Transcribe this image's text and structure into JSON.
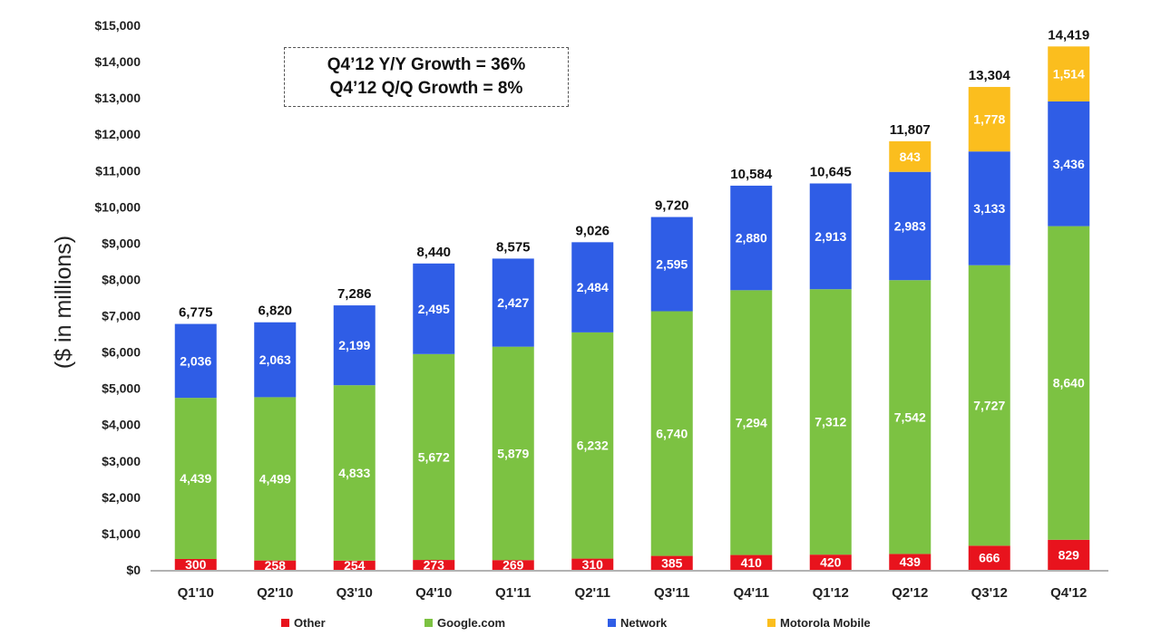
{
  "colors": {
    "Other": "#e8131d",
    "Google.com": "#7cc242",
    "Network": "#2f5de6",
    "Motorola Mobile": "#fbbe1e"
  },
  "growth_box": {
    "line1": "Q4’12 Y/Y Growth = 36%",
    "line2": "Q4’12 Q/Q Growth = 8%"
  },
  "chart_data": {
    "type": "bar",
    "stacked": true,
    "title": "",
    "xlabel": "",
    "ylabel": "($ in  millions)",
    "ylim": [
      0,
      15000
    ],
    "ytick_values": [
      0,
      1000,
      2000,
      3000,
      4000,
      5000,
      6000,
      7000,
      8000,
      9000,
      10000,
      11000,
      12000,
      13000,
      14000,
      15000
    ],
    "ytick_labels": [
      "$0",
      "$1,000",
      "$2,000",
      "$3,000",
      "$4,000",
      "$5,000",
      "$6,000",
      "$7,000",
      "$8,000",
      "$9,000",
      "$10,000",
      "$11,000",
      "$12,000",
      "$13,000",
      "$14,000",
      "$15,000"
    ],
    "categories": [
      "Q1'10",
      "Q2'10",
      "Q3'10",
      "Q4'10",
      "Q1'11",
      "Q2'11",
      "Q3'11",
      "Q4'11",
      "Q1'12",
      "Q2'12",
      "Q3'12",
      "Q4'12"
    ],
    "series": [
      {
        "name": "Other",
        "values": [
          300,
          258,
          254,
          273,
          269,
          310,
          385,
          410,
          420,
          439,
          666,
          829
        ],
        "labels": [
          "300",
          "258",
          "254",
          "273",
          "269",
          "310",
          "385",
          "410",
          "420",
          "439",
          "666",
          "829"
        ]
      },
      {
        "name": "Google.com",
        "values": [
          4439,
          4499,
          4833,
          5672,
          5879,
          6232,
          6740,
          7294,
          7312,
          7542,
          7727,
          8640
        ],
        "labels": [
          "4,439",
          "4,499",
          "4,833",
          "5,672",
          "5,879",
          "6,232",
          "6,740",
          "7,294",
          "7,312",
          "7,542",
          "7,727",
          "8,640"
        ]
      },
      {
        "name": "Network",
        "values": [
          2036,
          2063,
          2199,
          2495,
          2427,
          2484,
          2595,
          2880,
          2913,
          2983,
          3133,
          3436
        ],
        "labels": [
          "2,036",
          "2,063",
          "2,199",
          "2,495",
          "2,427",
          "2,484",
          "2,595",
          "2,880",
          "2,913",
          "2,983",
          "3,133",
          "3,436"
        ]
      },
      {
        "name": "Motorola Mobile",
        "values": [
          0,
          0,
          0,
          0,
          0,
          0,
          0,
          0,
          0,
          843,
          1778,
          1514
        ],
        "labels": [
          "",
          "",
          "",
          "",
          "",
          "",
          "",
          "",
          "",
          "843",
          "1,778",
          "1,514"
        ]
      }
    ],
    "totals": [
      6775,
      6820,
      7286,
      8440,
      8575,
      9026,
      9720,
      10584,
      10645,
      11807,
      13304,
      14419
    ],
    "total_labels": [
      "6,775",
      "6,820",
      "7,286",
      "8,440",
      "8,575",
      "9,026",
      "9,720",
      "10,584",
      "10,645",
      "11,807",
      "13,304",
      "14,419"
    ],
    "legend": [
      "Other",
      "Google.com",
      "Network",
      "Motorola Mobile"
    ],
    "legend_position": "bottom"
  }
}
